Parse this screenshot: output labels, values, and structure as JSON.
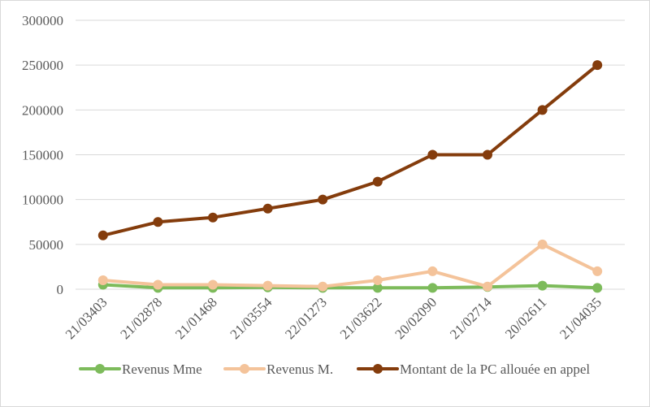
{
  "chart_data": {
    "type": "line",
    "title": "",
    "xlabel": "",
    "ylabel": "",
    "categories": [
      "21/03403",
      "21/02878",
      "21/01468",
      "21/03554",
      "22/01273",
      "21/03622",
      "20/02090",
      "21/02714",
      "20/02611",
      "21/04035"
    ],
    "ylim": [
      0,
      300000
    ],
    "yticks": [
      0,
      50000,
      100000,
      150000,
      200000,
      250000,
      300000
    ],
    "ytick_labels": [
      "0",
      "50000",
      "100000",
      "150000",
      "200000",
      "250000",
      "300000"
    ],
    "grid": true,
    "legend_position": "bottom",
    "series": [
      {
        "name": "Revenus Mme",
        "color": "#7dbb5b",
        "values": [
          5000,
          1500,
          1500,
          2000,
          1500,
          1500,
          1500,
          2500,
          4000,
          1500
        ]
      },
      {
        "name": "Revenus M.",
        "color": "#f4c39a",
        "values": [
          10000,
          5000,
          5000,
          4000,
          3000,
          10000,
          20000,
          3000,
          50000,
          20000
        ]
      },
      {
        "name": "Montant de la PC allouée en appel",
        "color": "#843c0c",
        "values": [
          60000,
          75000,
          80000,
          90000,
          100000,
          120000,
          150000,
          150000,
          200000,
          250000
        ]
      }
    ]
  }
}
